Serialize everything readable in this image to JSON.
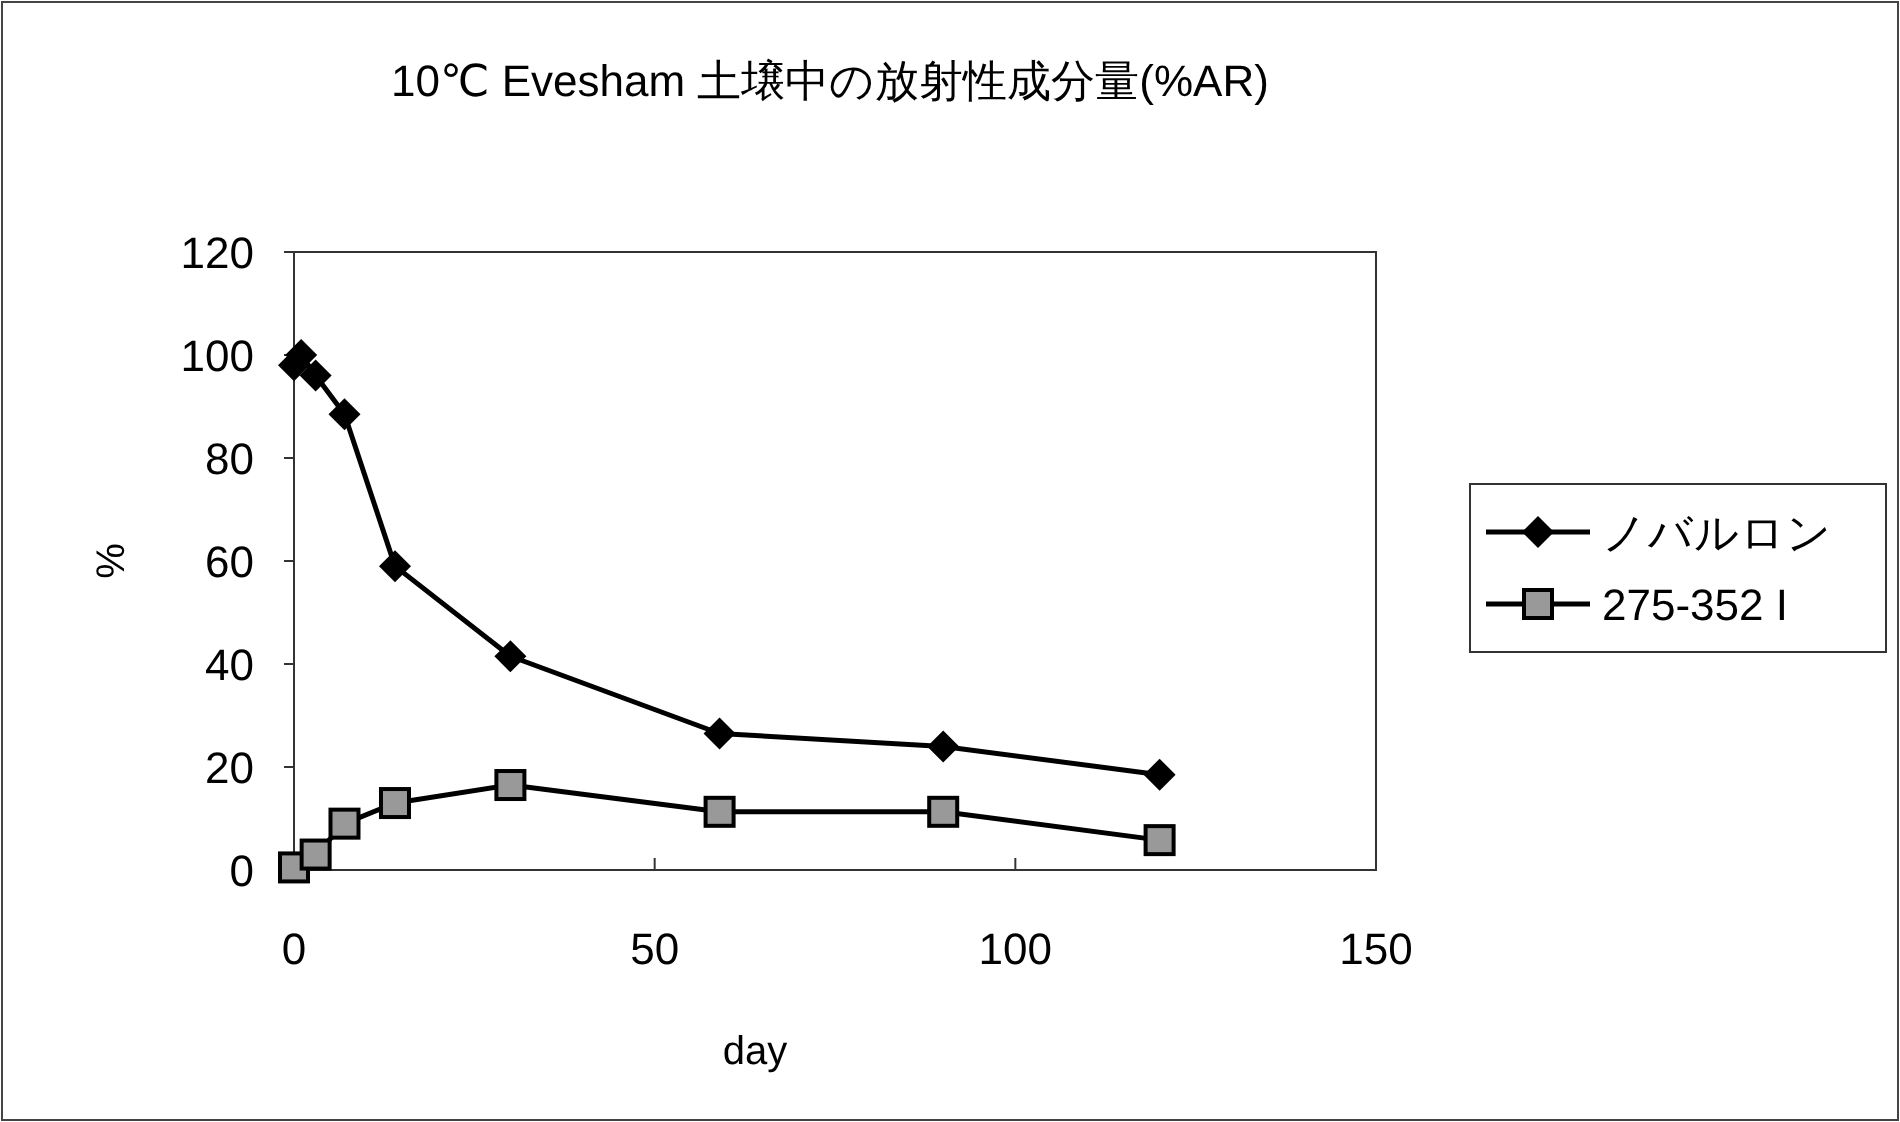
{
  "chart_data": {
    "type": "line",
    "title": "10℃ Evesham 土壌中の放射性成分量(%AR)",
    "xlabel": "day",
    "ylabel": "%",
    "xlim": [
      0,
      150
    ],
    "xticks": [
      0,
      50,
      100,
      150
    ],
    "ylim": [
      0,
      120
    ],
    "yticks": [
      0,
      20,
      40,
      60,
      80,
      100,
      120
    ],
    "grid": false,
    "legend": "right",
    "series": [
      {
        "name": "ノバルロン",
        "color": "#000000",
        "marker": "diamond",
        "x": [
          0,
          1,
          3,
          7,
          14,
          30,
          59,
          90,
          120
        ],
        "values": [
          98,
          100,
          96,
          88.5,
          59,
          41.5,
          26.5,
          24,
          18.5
        ]
      },
      {
        "name": "275-352 I",
        "color": "#000000",
        "marker": "square",
        "x": [
          0,
          3,
          7,
          14,
          30,
          59,
          90,
          120
        ],
        "values": [
          0.5,
          3,
          9,
          13,
          16.5,
          11.3,
          11.3,
          5.8
        ]
      }
    ]
  }
}
